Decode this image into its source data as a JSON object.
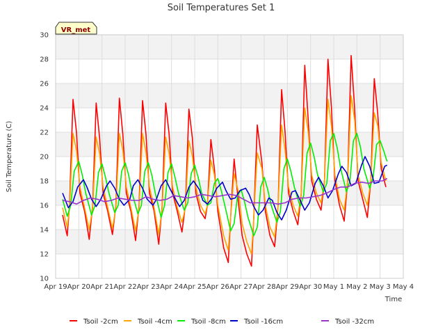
{
  "chart_data": {
    "type": "line",
    "title": "Soil Temperatures Set 1",
    "xlabel": "Time",
    "ylabel": "Soil Temperature (C)",
    "badge": "VR_met",
    "ylim": [
      10,
      30
    ],
    "yticks": [
      10,
      12,
      14,
      16,
      18,
      20,
      22,
      24,
      26,
      28,
      30
    ],
    "xlim": [
      0,
      15
    ],
    "xticks": [
      {
        "x": 0,
        "label": "Apr 19"
      },
      {
        "x": 1,
        "label": "Apr 20"
      },
      {
        "x": 2,
        "label": "Apr 21"
      },
      {
        "x": 3,
        "label": "Apr 22"
      },
      {
        "x": 4,
        "label": "Apr 23"
      },
      {
        "x": 5,
        "label": "Apr 24"
      },
      {
        "x": 6,
        "label": "Apr 25"
      },
      {
        "x": 7,
        "label": "Apr 26"
      },
      {
        "x": 8,
        "label": "Apr 27"
      },
      {
        "x": 9,
        "label": "Apr 28"
      },
      {
        "x": 10,
        "label": "Apr 29"
      },
      {
        "x": 11,
        "label": "Apr 30"
      },
      {
        "x": 12,
        "label": "May 1"
      },
      {
        "x": 13,
        "label": "May 2"
      },
      {
        "x": 14,
        "label": "May 3"
      },
      {
        "x": 15,
        "label": "May 4"
      }
    ],
    "grid": true,
    "background_bands": true,
    "legend_position": "bottom",
    "series": [
      {
        "name": "Tsoil -2cm",
        "color": "#ff0000",
        "x": [
          0.3,
          0.5,
          0.6,
          0.75,
          0.9,
          1.05,
          1.25,
          1.45,
          1.6,
          1.75,
          1.9,
          2.05,
          2.25,
          2.45,
          2.6,
          2.75,
          2.9,
          3.05,
          3.25,
          3.45,
          3.6,
          3.75,
          3.9,
          4.05,
          4.25,
          4.45,
          4.6,
          4.75,
          4.9,
          5.05,
          5.25,
          5.45,
          5.6,
          5.75,
          5.9,
          6.05,
          6.25,
          6.45,
          6.55,
          6.7,
          6.85,
          7.0,
          7.25,
          7.45,
          7.55,
          7.7,
          7.9,
          8.05,
          8.25,
          8.45,
          8.55,
          8.7,
          8.9,
          9.05,
          9.25,
          9.45,
          9.6,
          9.75,
          9.9,
          10.05,
          10.25,
          10.45,
          10.6,
          10.75,
          10.9,
          11.05,
          11.25,
          11.45,
          11.6,
          11.75,
          11.9,
          12.05,
          12.25,
          12.45,
          12.6,
          12.75,
          12.9,
          13.05,
          13.25,
          13.45,
          13.6,
          13.75,
          13.9,
          14.05,
          14.25
        ],
        "y": [
          15.2,
          13.5,
          16,
          24.7,
          22,
          17,
          15.5,
          13.2,
          16,
          24.4,
          21.5,
          17,
          15.5,
          13.6,
          16,
          24.8,
          21.8,
          17,
          15.5,
          13.1,
          16,
          24.6,
          21.8,
          17,
          15.5,
          12.8,
          16,
          24.4,
          21.8,
          17,
          15.5,
          13.8,
          16,
          23.9,
          21.5,
          17,
          15.5,
          14.9,
          16,
          21.4,
          19,
          15.5,
          12.5,
          11.3,
          15,
          19.8,
          16,
          13.5,
          12,
          11,
          15,
          22.6,
          19.5,
          15.5,
          13.5,
          12.6,
          16,
          25.5,
          22,
          17,
          15.5,
          14.4,
          17,
          27.5,
          23,
          18,
          16.5,
          15.6,
          18,
          28,
          24,
          18,
          16,
          14.7,
          18,
          28.3,
          24,
          18,
          16.5,
          15,
          18,
          26.4,
          23.5,
          19,
          17.5
        ]
      },
      {
        "name": "Tsoil -4cm",
        "color": "#ffa500",
        "x": [
          0.3,
          0.5,
          0.6,
          0.75,
          0.9,
          1.05,
          1.25,
          1.45,
          1.6,
          1.75,
          1.9,
          2.05,
          2.25,
          2.45,
          2.6,
          2.75,
          2.9,
          3.05,
          3.25,
          3.45,
          3.6,
          3.75,
          3.9,
          4.05,
          4.25,
          4.45,
          4.6,
          4.75,
          4.9,
          5.05,
          5.25,
          5.45,
          5.6,
          5.75,
          5.9,
          6.05,
          6.25,
          6.45,
          6.55,
          6.7,
          6.85,
          7.0,
          7.25,
          7.45,
          7.55,
          7.7,
          7.9,
          8.05,
          8.25,
          8.45,
          8.55,
          8.7,
          8.9,
          9.05,
          9.25,
          9.45,
          9.6,
          9.75,
          9.9,
          10.05,
          10.25,
          10.45,
          10.6,
          10.75,
          10.9,
          11.05,
          11.25,
          11.45,
          11.6,
          11.75,
          11.9,
          12.05,
          12.25,
          12.45,
          12.6,
          12.75,
          12.9,
          13.05,
          13.25,
          13.45,
          13.6,
          13.75,
          13.9,
          14.05,
          14.25
        ],
        "y": [
          15.8,
          14.2,
          15.8,
          21.9,
          20.5,
          17.5,
          15.8,
          14,
          15.8,
          21.6,
          20.2,
          17.5,
          15.8,
          14.1,
          15.8,
          21.9,
          20.5,
          17.5,
          15.8,
          13.9,
          15.8,
          21.9,
          20.3,
          17.5,
          15.8,
          13.6,
          15.8,
          21.6,
          20.2,
          17.5,
          15.8,
          14.6,
          15.8,
          21.3,
          20,
          17.5,
          16,
          15.3,
          16,
          19.7,
          18.5,
          16,
          13.5,
          12.3,
          15,
          18.6,
          17,
          14.5,
          13,
          12,
          15,
          20.3,
          19,
          16,
          14.2,
          13.4,
          16,
          22.6,
          20.5,
          17.5,
          16,
          15.1,
          17,
          24,
          22,
          18.5,
          17,
          16.2,
          18,
          24.7,
          22.5,
          18.5,
          16.5,
          15.6,
          18,
          25,
          23,
          18.5,
          17,
          16,
          18,
          23.6,
          22.5,
          19.5,
          18
        ]
      },
      {
        "name": "Tsoil -8cm",
        "color": "#00ee00",
        "x": [
          0.3,
          0.5,
          0.65,
          0.8,
          1.0,
          1.15,
          1.3,
          1.55,
          1.7,
          1.85,
          2.0,
          2.15,
          2.3,
          2.55,
          2.7,
          2.85,
          3.0,
          3.15,
          3.3,
          3.55,
          3.7,
          3.85,
          4.0,
          4.15,
          4.3,
          4.55,
          4.7,
          4.85,
          5.0,
          5.15,
          5.3,
          5.55,
          5.7,
          5.85,
          6.0,
          6.15,
          6.3,
          6.55,
          6.7,
          6.85,
          7.0,
          7.15,
          7.3,
          7.55,
          7.7,
          7.85,
          8.0,
          8.15,
          8.3,
          8.55,
          8.7,
          8.85,
          9.0,
          9.15,
          9.3,
          9.55,
          9.7,
          9.85,
          10.0,
          10.15,
          10.3,
          10.55,
          10.7,
          10.85,
          11.0,
          11.15,
          11.3,
          11.55,
          11.7,
          11.85,
          12.0,
          12.15,
          12.3,
          12.55,
          12.7,
          12.85,
          13.0,
          13.15,
          13.3,
          13.55,
          13.7,
          13.85,
          14.0,
          14.15,
          14.3
        ],
        "y": [
          16.5,
          15.1,
          16,
          18.8,
          19.6,
          18.5,
          17,
          15.2,
          16,
          18.7,
          19.4,
          18.3,
          17,
          15.4,
          16,
          18.8,
          19.5,
          18.5,
          17,
          15.3,
          16,
          18.8,
          19.5,
          18.5,
          17,
          15,
          16,
          18.7,
          19.4,
          18.3,
          17,
          15.6,
          16.2,
          18.6,
          19.3,
          18.3,
          17,
          16,
          16.2,
          17.8,
          18.2,
          17.2,
          16,
          13.9,
          14.5,
          16.8,
          17.3,
          16.3,
          15,
          13.5,
          14.2,
          17.5,
          18.3,
          17.3,
          16,
          14.6,
          15.5,
          19,
          19.8,
          18.8,
          17.5,
          15.9,
          16.8,
          20.3,
          21.1,
          20,
          18.5,
          17.1,
          17.8,
          21.3,
          21.9,
          20.7,
          19,
          17.1,
          18,
          21.3,
          21.9,
          20.8,
          19,
          17.4,
          18.3,
          21,
          21.3,
          20.5,
          19.6
        ]
      },
      {
        "name": "Tsoil -16cm",
        "color": "#0000cc",
        "x": [
          0.3,
          0.55,
          0.75,
          0.95,
          1.2,
          1.35,
          1.55,
          1.75,
          1.95,
          2.2,
          2.35,
          2.55,
          2.75,
          2.95,
          3.2,
          3.35,
          3.55,
          3.75,
          3.95,
          4.2,
          4.35,
          4.55,
          4.75,
          4.95,
          5.2,
          5.35,
          5.55,
          5.75,
          5.95,
          6.2,
          6.35,
          6.55,
          6.75,
          6.95,
          7.2,
          7.35,
          7.55,
          7.75,
          7.95,
          8.2,
          8.35,
          8.55,
          8.75,
          8.95,
          9.2,
          9.35,
          9.55,
          9.75,
          9.95,
          10.2,
          10.35,
          10.55,
          10.75,
          10.95,
          11.2,
          11.35,
          11.55,
          11.75,
          11.95,
          12.2,
          12.35,
          12.55,
          12.75,
          12.95,
          13.2,
          13.35,
          13.55,
          13.75,
          13.95,
          14.2,
          14.3
        ],
        "y": [
          17,
          15.8,
          16.3,
          17.5,
          18.1,
          17.5,
          16.5,
          15.9,
          16.5,
          17.6,
          18,
          17.4,
          16.5,
          16,
          16.5,
          17.6,
          18.1,
          17.4,
          16.5,
          16,
          16.5,
          17.6,
          18.1,
          17.3,
          16.4,
          15.9,
          16.4,
          17.5,
          18,
          17.3,
          16.4,
          16.1,
          16.6,
          17.4,
          17.9,
          17.2,
          16.5,
          16.6,
          17.2,
          17.4,
          16.9,
          15.9,
          15.2,
          15.6,
          16.6,
          16.4,
          15.4,
          14.8,
          15.6,
          17.1,
          17.2,
          16.4,
          15.6,
          16.2,
          17.8,
          18.3,
          17.6,
          16.6,
          17.2,
          18.6,
          19.2,
          18.7,
          17.6,
          17.8,
          19.3,
          20,
          19.2,
          17.8,
          17.9,
          19.2,
          19.3
        ]
      },
      {
        "name": "Tsoil -32cm",
        "color": "#9933cc",
        "x": [
          0.3,
          0.6,
          0.9,
          1.2,
          1.5,
          1.8,
          2.1,
          2.4,
          2.7,
          3.0,
          3.3,
          3.6,
          3.9,
          4.2,
          4.5,
          4.8,
          5.1,
          5.4,
          5.7,
          6.0,
          6.3,
          6.6,
          6.9,
          7.2,
          7.5,
          7.8,
          8.1,
          8.4,
          8.7,
          9.0,
          9.3,
          9.6,
          9.9,
          10.2,
          10.5,
          10.8,
          11.1,
          11.4,
          11.7,
          12.0,
          12.3,
          12.6,
          12.9,
          13.2,
          13.5,
          13.8,
          14.1,
          14.3
        ],
        "y": [
          16.4,
          16.3,
          16.1,
          16.4,
          16.6,
          16.5,
          16.3,
          16.4,
          16.6,
          16.5,
          16.4,
          16.4,
          16.7,
          16.5,
          16.4,
          16.5,
          16.8,
          16.7,
          16.6,
          16.7,
          16.9,
          16.8,
          16.7,
          16.8,
          16.9,
          16.8,
          16.5,
          16.2,
          16.2,
          16.2,
          16.2,
          16.1,
          16.2,
          16.5,
          16.6,
          16.6,
          16.7,
          16.8,
          17,
          17.3,
          17.5,
          17.5,
          17.8,
          17.9,
          17.8,
          18,
          18,
          18.2
        ]
      }
    ]
  }
}
